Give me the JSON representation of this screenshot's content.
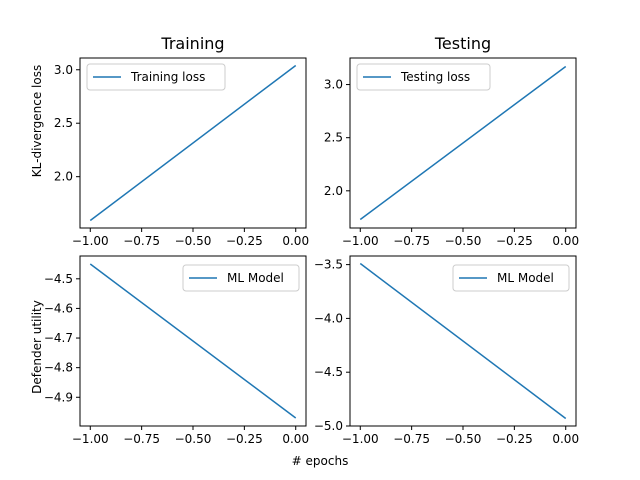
{
  "figure": {
    "xlabel": "# epochs",
    "ylabel_top": "KL-divergence loss",
    "ylabel_bottom": "Defender utility",
    "line_color": "#1f77b4"
  },
  "chart_data": [
    {
      "type": "line",
      "title": "Training",
      "xlabel": "",
      "ylabel": "KL-divergence loss",
      "xlim": [
        -1.05,
        0.05
      ],
      "ylim": [
        1.52,
        3.11
      ],
      "xticks": [
        -1.0,
        -0.75,
        -0.5,
        -0.25,
        0.0
      ],
      "xtick_labels": [
        "−1.00",
        "−0.75",
        "−0.50",
        "−0.25",
        "0.00"
      ],
      "yticks": [
        2.0,
        2.5,
        3.0
      ],
      "ytick_labels": [
        "2.0",
        "2.5",
        "3.0"
      ],
      "legend": "top-left",
      "grid": false,
      "series": [
        {
          "name": "Training loss",
          "x": [
            -1.0,
            0.0
          ],
          "y": [
            1.59,
            3.04
          ]
        }
      ]
    },
    {
      "type": "line",
      "title": "Testing",
      "xlabel": "",
      "ylabel": "",
      "xlim": [
        -1.05,
        0.05
      ],
      "ylim": [
        1.65,
        3.25
      ],
      "xticks": [
        -1.0,
        -0.75,
        -0.5,
        -0.25,
        0.0
      ],
      "xtick_labels": [
        "−1.00",
        "−0.75",
        "−0.50",
        "−0.25",
        "0.00"
      ],
      "yticks": [
        2.0,
        2.5,
        3.0
      ],
      "ytick_labels": [
        "2.0",
        "2.5",
        "3.0"
      ],
      "legend": "top-left",
      "grid": false,
      "series": [
        {
          "name": "Testing loss",
          "x": [
            -1.0,
            0.0
          ],
          "y": [
            1.73,
            3.17
          ]
        }
      ]
    },
    {
      "type": "line",
      "title": "",
      "xlabel": "",
      "ylabel": "Defender utility",
      "xlim": [
        -1.05,
        0.05
      ],
      "ylim": [
        -4.997,
        -4.423
      ],
      "xticks": [
        -1.0,
        -0.75,
        -0.5,
        -0.25,
        0.0
      ],
      "xtick_labels": [
        "−1.00",
        "−0.75",
        "−0.50",
        "−0.25",
        "0.00"
      ],
      "yticks": [
        -4.9,
        -4.8,
        -4.7,
        -4.6,
        -4.5
      ],
      "ytick_labels": [
        "−4.9",
        "−4.8",
        "−4.7",
        "−4.6",
        "−4.5"
      ],
      "legend": "top-right",
      "grid": false,
      "series": [
        {
          "name": "ML Model",
          "x": [
            -1.0,
            0.0
          ],
          "y": [
            -4.45,
            -4.97
          ]
        }
      ]
    },
    {
      "type": "line",
      "title": "",
      "xlabel": "",
      "ylabel": "",
      "xlim": [
        -1.05,
        0.05
      ],
      "ylim": [
        -5.0,
        -3.42
      ],
      "xticks": [
        -1.0,
        -0.75,
        -0.5,
        -0.25,
        0.0
      ],
      "xtick_labels": [
        "−1.00",
        "−0.75",
        "−0.50",
        "−0.25",
        "0.00"
      ],
      "yticks": [
        -5.0,
        -4.5,
        -4.0,
        -3.5
      ],
      "ytick_labels": [
        "−5.0",
        "−4.5",
        "−4.0",
        "−3.5"
      ],
      "legend": "top-right",
      "grid": false,
      "series": [
        {
          "name": "ML Model",
          "x": [
            -1.0,
            0.0
          ],
          "y": [
            -3.49,
            -4.93
          ]
        }
      ]
    }
  ]
}
